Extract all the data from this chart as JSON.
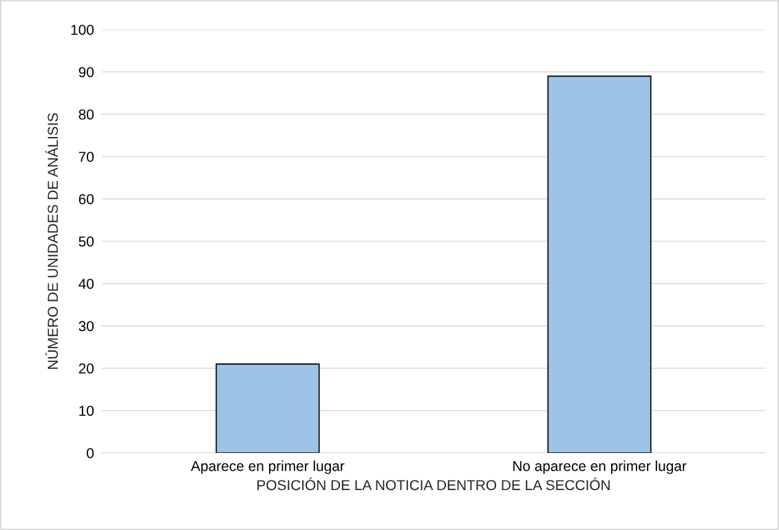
{
  "chart_data": {
    "type": "bar",
    "xlabel": "POSICIÓN DE LA NOTICIA DENTRO DE LA SECCIÓN",
    "ylabel": "NÚMERO DE UNIDADES DE ANÁLISIS",
    "categories": [
      "Aparece en primer lugar",
      "No aparece en primer lugar"
    ],
    "values": [
      21,
      89
    ],
    "color": "#9dc3e6",
    "ylim": [
      0,
      100
    ],
    "yticks": [
      0,
      10,
      20,
      30,
      40,
      50,
      60,
      70,
      80,
      90,
      100
    ],
    "grid": "y"
  }
}
